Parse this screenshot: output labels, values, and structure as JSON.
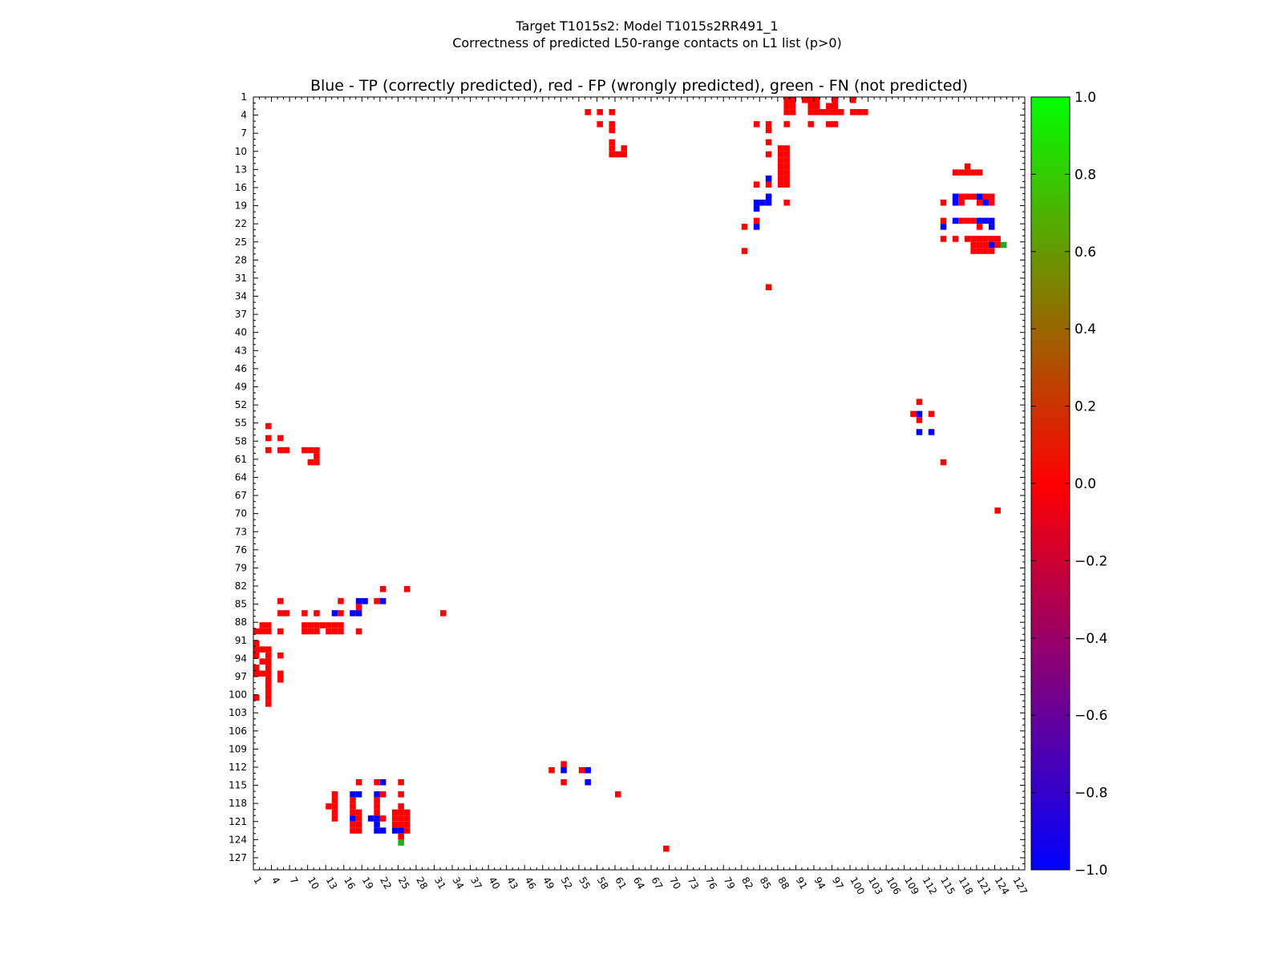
{
  "figure": {
    "suptitle_line1": "Target T1015s2: Model T1015s2RR491_1",
    "suptitle_line2": "Correctness of predicted L50-range contacts on L1 list (p>0)"
  },
  "colors": {
    "tp": "#0000ff",
    "fp": "#ff0000",
    "fn": "#22aa22",
    "colormap_low": "#0000ff",
    "colormap_mid": "#ff0000",
    "colormap_high": "#00ff00"
  },
  "chart_data": {
    "type": "heatmap",
    "title": "Blue - TP (correctly predicted), red - FP (wrongly predicted), green - FN (not predicted)",
    "xlabel": "",
    "ylabel": "",
    "xlim": [
      1,
      129
    ],
    "ylim": [
      1,
      129
    ],
    "y_inverted": true,
    "grid": false,
    "x_ticks": [
      "1",
      "4",
      "7",
      "10",
      "13",
      "16",
      "19",
      "22",
      "25",
      "28",
      "31",
      "34",
      "37",
      "40",
      "43",
      "46",
      "49",
      "52",
      "55",
      "58",
      "61",
      "64",
      "67",
      "70",
      "73",
      "76",
      "79",
      "82",
      "85",
      "88",
      "91",
      "94",
      "97",
      "100",
      "103",
      "106",
      "109",
      "112",
      "115",
      "118",
      "121",
      "124",
      "127"
    ],
    "y_ticks": [
      "1",
      "4",
      "7",
      "10",
      "13",
      "16",
      "19",
      "22",
      "25",
      "28",
      "31",
      "34",
      "37",
      "40",
      "43",
      "46",
      "49",
      "52",
      "55",
      "58",
      "61",
      "64",
      "67",
      "70",
      "73",
      "76",
      "79",
      "82",
      "85",
      "88",
      "91",
      "94",
      "97",
      "100",
      "103",
      "106",
      "109",
      "112",
      "115",
      "118",
      "121",
      "124",
      "127"
    ],
    "colorbar": {
      "min": -1.0,
      "max": 1.0,
      "ticks": [
        "1.0",
        "0.8",
        "0.6",
        "0.4",
        "0.2",
        "0.0",
        "−0.2",
        "−0.4",
        "−0.6",
        "−0.8",
        "−1.0"
      ]
    },
    "cell_value_legend": {
      "tp": -1,
      "fp": 0,
      "fn": 1
    },
    "cells": [
      [
        89,
        1,
        0
      ],
      [
        90,
        1,
        0
      ],
      [
        92,
        1,
        0
      ],
      [
        93,
        1,
        0
      ],
      [
        94,
        1,
        0
      ],
      [
        97,
        1,
        0
      ],
      [
        100,
        1,
        0
      ],
      [
        89,
        2,
        0
      ],
      [
        90,
        2,
        0
      ],
      [
        93,
        2,
        0
      ],
      [
        94,
        2,
        0
      ],
      [
        96,
        2,
        0
      ],
      [
        97,
        2,
        0
      ],
      [
        56,
        3,
        0
      ],
      [
        58,
        3,
        0
      ],
      [
        60,
        3,
        0
      ],
      [
        89,
        3,
        0
      ],
      [
        90,
        3,
        0
      ],
      [
        93,
        3,
        0
      ],
      [
        94,
        3,
        0
      ],
      [
        95,
        3,
        0
      ],
      [
        96,
        3,
        0
      ],
      [
        97,
        3,
        0
      ],
      [
        98,
        3,
        0
      ],
      [
        100,
        3,
        0
      ],
      [
        101,
        3,
        0
      ],
      [
        102,
        3,
        0
      ],
      [
        58,
        5,
        0
      ],
      [
        60,
        5,
        0
      ],
      [
        84,
        5,
        0
      ],
      [
        86,
        5,
        0
      ],
      [
        89,
        5,
        0
      ],
      [
        93,
        5,
        0
      ],
      [
        96,
        5,
        0
      ],
      [
        97,
        5,
        0
      ],
      [
        60,
        6,
        0
      ],
      [
        86,
        6,
        0
      ],
      [
        60,
        8,
        0
      ],
      [
        86,
        8,
        0
      ],
      [
        60,
        9,
        0
      ],
      [
        62,
        9,
        0
      ],
      [
        88,
        9,
        0
      ],
      [
        89,
        9,
        0
      ],
      [
        60,
        10,
        0
      ],
      [
        61,
        10,
        0
      ],
      [
        62,
        10,
        0
      ],
      [
        86,
        10,
        0
      ],
      [
        88,
        10,
        0
      ],
      [
        89,
        10,
        0
      ],
      [
        88,
        11,
        0
      ],
      [
        89,
        11,
        0
      ],
      [
        88,
        12,
        0
      ],
      [
        89,
        12,
        0
      ],
      [
        119,
        12,
        0
      ],
      [
        88,
        13,
        0
      ],
      [
        89,
        13,
        0
      ],
      [
        117,
        13,
        0
      ],
      [
        118,
        13,
        0
      ],
      [
        119,
        13,
        0
      ],
      [
        120,
        13,
        0
      ],
      [
        121,
        13,
        0
      ],
      [
        86,
        14,
        -1
      ],
      [
        88,
        14,
        0
      ],
      [
        89,
        14,
        0
      ],
      [
        84,
        15,
        0
      ],
      [
        86,
        15,
        0
      ],
      [
        88,
        15,
        0
      ],
      [
        89,
        15,
        0
      ],
      [
        86,
        17,
        -1
      ],
      [
        117,
        17,
        -1
      ],
      [
        118,
        17,
        0
      ],
      [
        119,
        17,
        0
      ],
      [
        120,
        17,
        0
      ],
      [
        121,
        17,
        -1
      ],
      [
        122,
        17,
        0
      ],
      [
        123,
        17,
        0
      ],
      [
        84,
        18,
        -1
      ],
      [
        85,
        18,
        -1
      ],
      [
        86,
        18,
        -1
      ],
      [
        89,
        18,
        0
      ],
      [
        115,
        18,
        0
      ],
      [
        117,
        18,
        -1
      ],
      [
        118,
        18,
        0
      ],
      [
        121,
        18,
        0
      ],
      [
        122,
        18,
        -1
      ],
      [
        123,
        18,
        0
      ],
      [
        84,
        19,
        -1
      ],
      [
        84,
        21,
        0
      ],
      [
        115,
        21,
        0
      ],
      [
        117,
        21,
        -1
      ],
      [
        118,
        21,
        0
      ],
      [
        119,
        21,
        0
      ],
      [
        120,
        21,
        0
      ],
      [
        121,
        21,
        -1
      ],
      [
        122,
        21,
        -1
      ],
      [
        123,
        21,
        -1
      ],
      [
        82,
        22,
        0
      ],
      [
        84,
        22,
        -1
      ],
      [
        115,
        22,
        -1
      ],
      [
        121,
        22,
        0
      ],
      [
        123,
        22,
        -1
      ],
      [
        115,
        24,
        0
      ],
      [
        117,
        24,
        0
      ],
      [
        119,
        24,
        0
      ],
      [
        120,
        24,
        0
      ],
      [
        121,
        24,
        0
      ],
      [
        122,
        24,
        0
      ],
      [
        123,
        24,
        0
      ],
      [
        124,
        24,
        0
      ],
      [
        120,
        25,
        0
      ],
      [
        121,
        25,
        0
      ],
      [
        122,
        25,
        0
      ],
      [
        123,
        25,
        -1
      ],
      [
        124,
        25,
        0
      ],
      [
        125,
        25,
        1
      ],
      [
        82,
        26,
        0
      ],
      [
        120,
        26,
        0
      ],
      [
        121,
        26,
        0
      ],
      [
        122,
        26,
        0
      ],
      [
        123,
        26,
        0
      ],
      [
        86,
        32,
        0
      ],
      [
        111,
        51,
        0
      ],
      [
        110,
        53,
        0
      ],
      [
        111,
        53,
        -1
      ],
      [
        113,
        53,
        0
      ],
      [
        111,
        54,
        0
      ],
      [
        111,
        56,
        -1
      ],
      [
        113,
        56,
        -1
      ],
      [
        3,
        55,
        0
      ],
      [
        3,
        57,
        0
      ],
      [
        5,
        57,
        0
      ],
      [
        3,
        59,
        0
      ],
      [
        5,
        59,
        0
      ],
      [
        6,
        59,
        0
      ],
      [
        9,
        59,
        0
      ],
      [
        10,
        59,
        0
      ],
      [
        11,
        59,
        0
      ],
      [
        11,
        60,
        0
      ],
      [
        10,
        61,
        0
      ],
      [
        11,
        61,
        0
      ],
      [
        115,
        61,
        0
      ],
      [
        124,
        69,
        0
      ],
      [
        22,
        82,
        0
      ],
      [
        26,
        82,
        0
      ],
      [
        5,
        84,
        0
      ],
      [
        15,
        84,
        0
      ],
      [
        18,
        84,
        -1
      ],
      [
        19,
        84,
        -1
      ],
      [
        21,
        84,
        0
      ],
      [
        22,
        84,
        -1
      ],
      [
        18,
        85,
        0
      ],
      [
        5,
        86,
        0
      ],
      [
        6,
        86,
        0
      ],
      [
        9,
        86,
        0
      ],
      [
        11,
        86,
        0
      ],
      [
        14,
        86,
        -1
      ],
      [
        15,
        86,
        0
      ],
      [
        17,
        86,
        -1
      ],
      [
        18,
        86,
        -1
      ],
      [
        32,
        86,
        0
      ],
      [
        2,
        88,
        0
      ],
      [
        3,
        88,
        0
      ],
      [
        9,
        88,
        0
      ],
      [
        10,
        88,
        0
      ],
      [
        11,
        88,
        0
      ],
      [
        12,
        88,
        0
      ],
      [
        13,
        88,
        0
      ],
      [
        14,
        88,
        0
      ],
      [
        15,
        88,
        0
      ],
      [
        1,
        89,
        0
      ],
      [
        2,
        89,
        0
      ],
      [
        3,
        89,
        0
      ],
      [
        5,
        89,
        0
      ],
      [
        9,
        89,
        0
      ],
      [
        10,
        89,
        0
      ],
      [
        11,
        89,
        0
      ],
      [
        13,
        89,
        0
      ],
      [
        14,
        89,
        0
      ],
      [
        15,
        89,
        0
      ],
      [
        18,
        89,
        0
      ],
      [
        1,
        91,
        0
      ],
      [
        1,
        92,
        0
      ],
      [
        2,
        92,
        0
      ],
      [
        3,
        92,
        0
      ],
      [
        1,
        93,
        0
      ],
      [
        3,
        93,
        0
      ],
      [
        5,
        93,
        0
      ],
      [
        2,
        94,
        0
      ],
      [
        3,
        94,
        0
      ],
      [
        1,
        95,
        0
      ],
      [
        3,
        95,
        0
      ],
      [
        1,
        96,
        0
      ],
      [
        2,
        96,
        0
      ],
      [
        3,
        96,
        0
      ],
      [
        5,
        96,
        0
      ],
      [
        3,
        97,
        0
      ],
      [
        5,
        97,
        0
      ],
      [
        3,
        98,
        0
      ],
      [
        3,
        99,
        0
      ],
      [
        1,
        100,
        0
      ],
      [
        3,
        100,
        0
      ],
      [
        3,
        101,
        0
      ],
      [
        52,
        111,
        0
      ],
      [
        50,
        112,
        0
      ],
      [
        52,
        112,
        -1
      ],
      [
        55,
        112,
        0
      ],
      [
        56,
        112,
        -1
      ],
      [
        52,
        114,
        0
      ],
      [
        56,
        114,
        -1
      ],
      [
        18,
        114,
        0
      ],
      [
        21,
        114,
        0
      ],
      [
        22,
        114,
        -1
      ],
      [
        25,
        114,
        0
      ],
      [
        14,
        116,
        0
      ],
      [
        17,
        116,
        -1
      ],
      [
        18,
        116,
        -1
      ],
      [
        21,
        116,
        -1
      ],
      [
        22,
        116,
        0
      ],
      [
        25,
        116,
        0
      ],
      [
        14,
        117,
        0
      ],
      [
        17,
        117,
        0
      ],
      [
        21,
        117,
        0
      ],
      [
        13,
        118,
        0
      ],
      [
        14,
        118,
        0
      ],
      [
        17,
        118,
        0
      ],
      [
        21,
        118,
        0
      ],
      [
        25,
        118,
        0
      ],
      [
        14,
        119,
        0
      ],
      [
        17,
        119,
        0
      ],
      [
        18,
        119,
        0
      ],
      [
        21,
        119,
        0
      ],
      [
        24,
        119,
        0
      ],
      [
        25,
        119,
        0
      ],
      [
        26,
        119,
        0
      ],
      [
        14,
        120,
        0
      ],
      [
        17,
        120,
        -1
      ],
      [
        18,
        120,
        0
      ],
      [
        20,
        120,
        -1
      ],
      [
        21,
        120,
        -1
      ],
      [
        22,
        120,
        0
      ],
      [
        24,
        120,
        0
      ],
      [
        25,
        120,
        0
      ],
      [
        26,
        120,
        0
      ],
      [
        17,
        121,
        0
      ],
      [
        18,
        121,
        0
      ],
      [
        21,
        121,
        -1
      ],
      [
        24,
        121,
        0
      ],
      [
        25,
        121,
        0
      ],
      [
        26,
        121,
        0
      ],
      [
        17,
        122,
        0
      ],
      [
        18,
        122,
        0
      ],
      [
        21,
        122,
        -1
      ],
      [
        22,
        122,
        -1
      ],
      [
        24,
        122,
        -1
      ],
      [
        25,
        122,
        -1
      ],
      [
        26,
        122,
        0
      ],
      [
        25,
        123,
        0
      ],
      [
        25,
        124,
        1
      ],
      [
        61,
        116,
        0
      ],
      [
        69,
        125,
        0
      ]
    ]
  }
}
